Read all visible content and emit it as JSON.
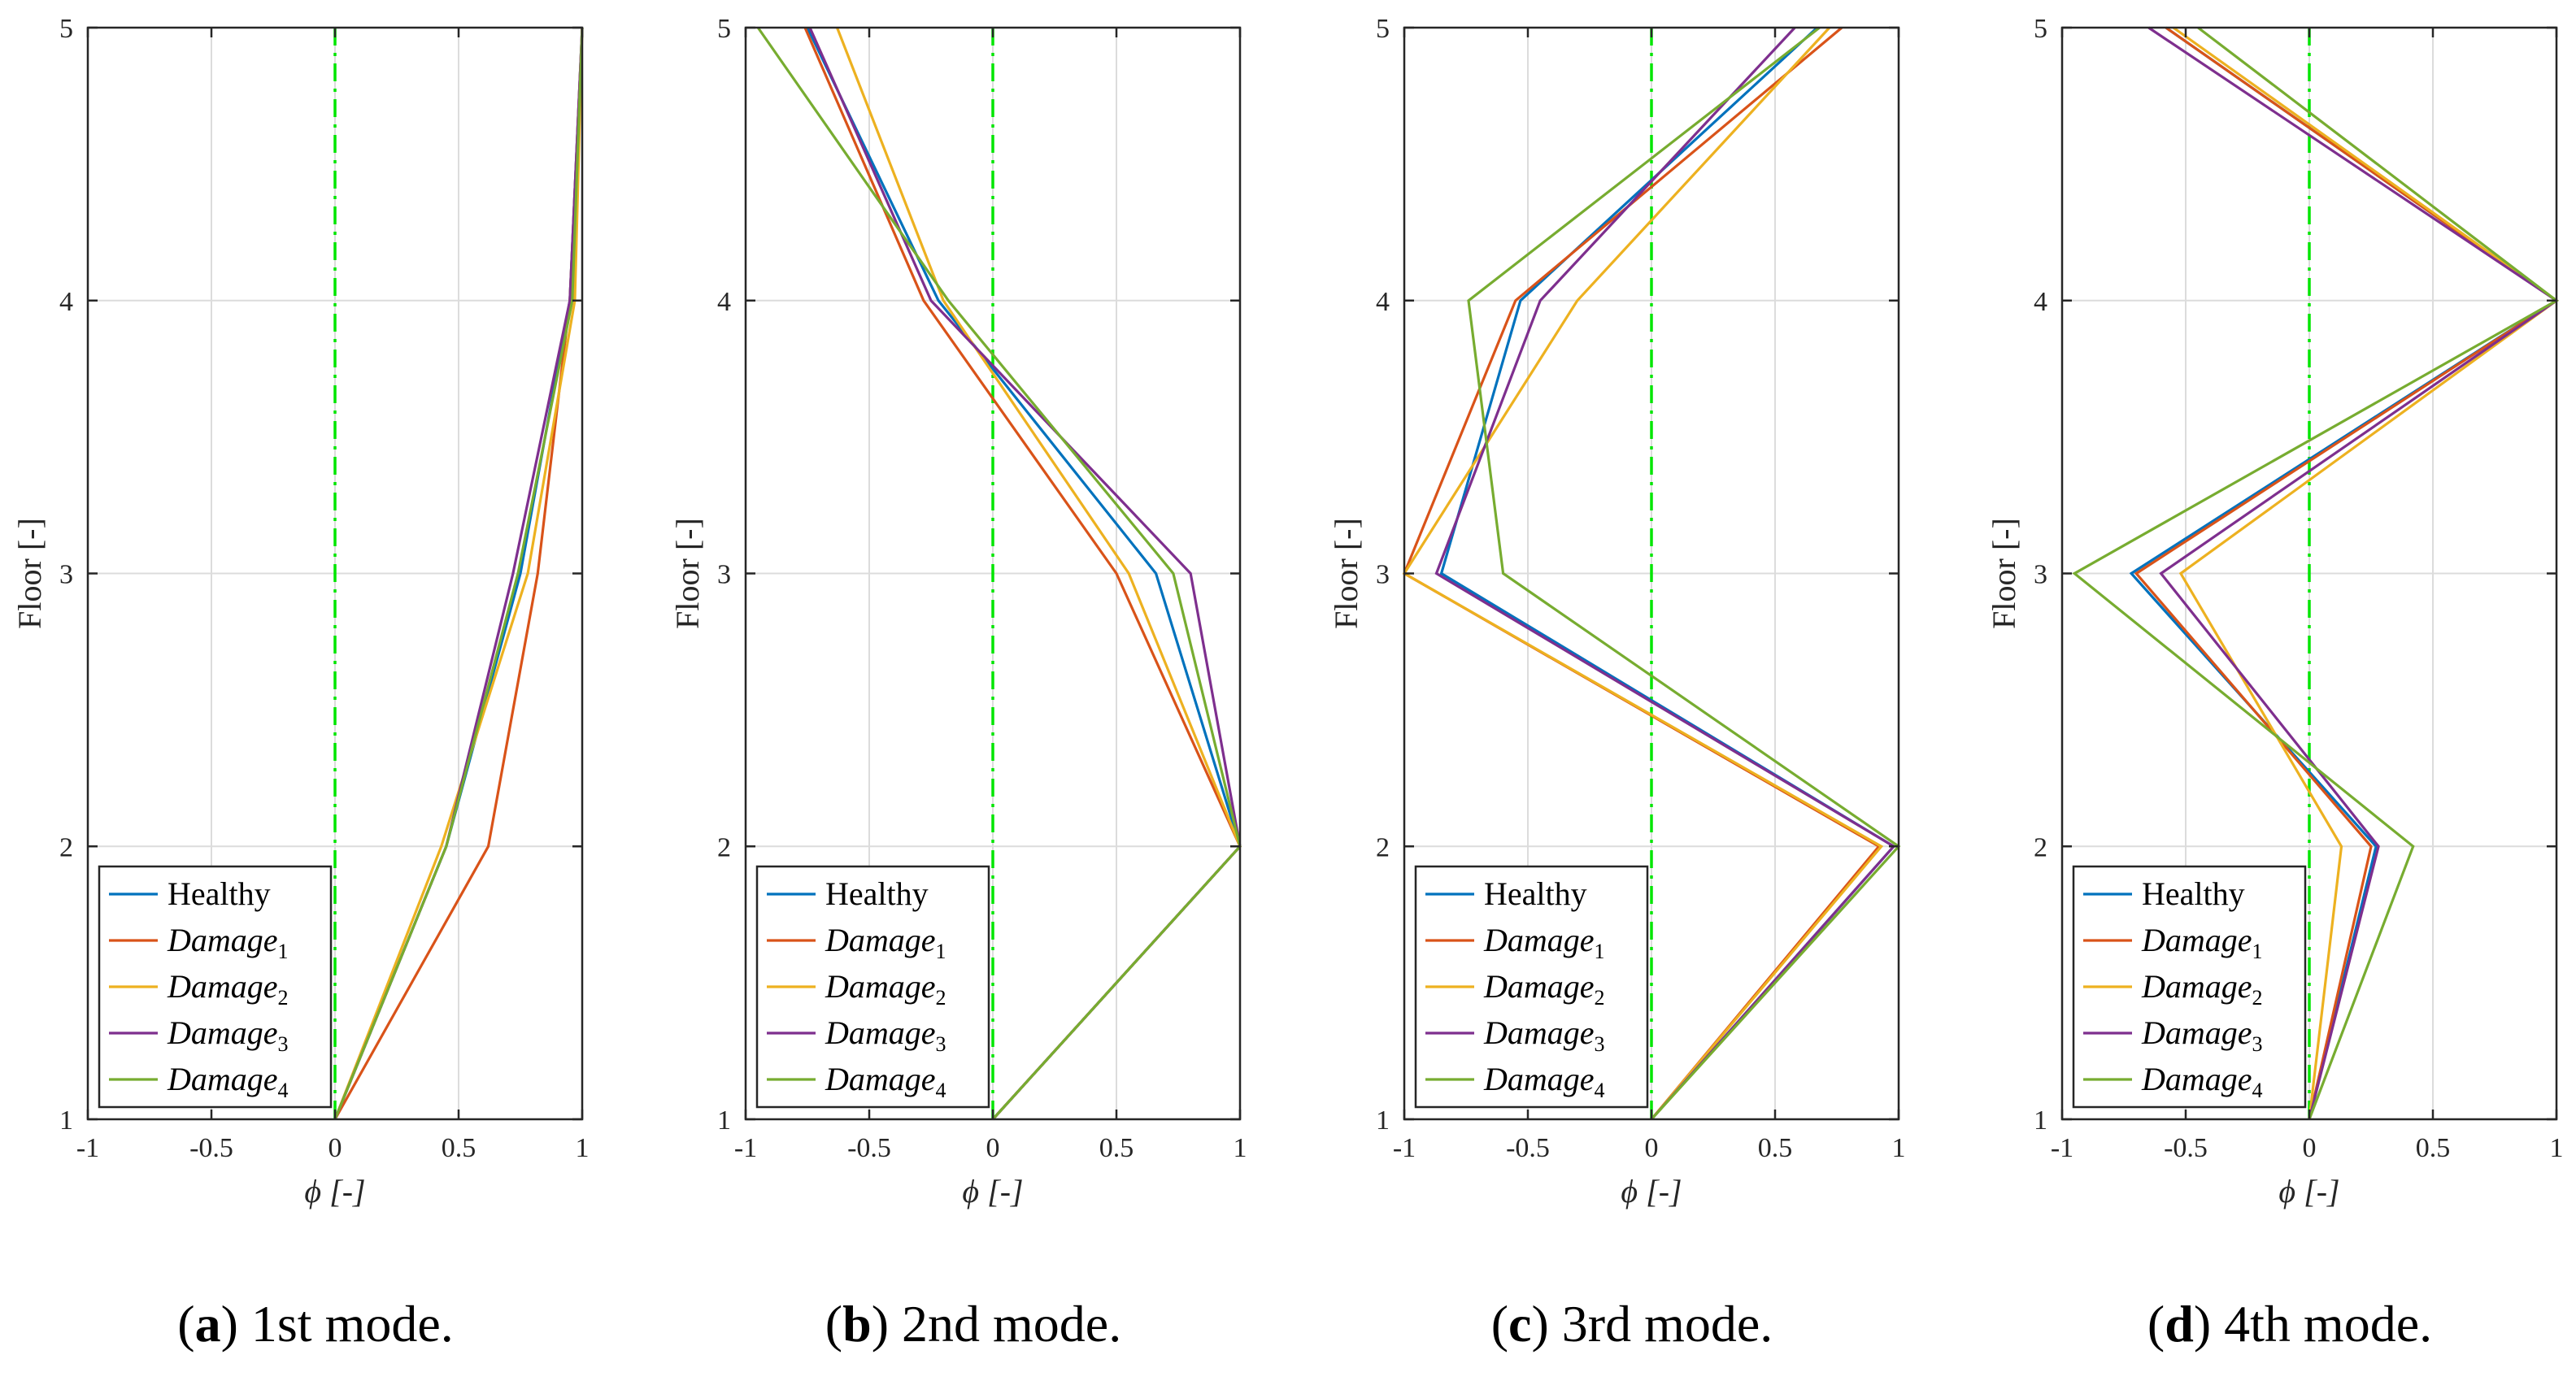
{
  "chart_data": [
    {
      "type": "line",
      "xlabel": "ϕ [-]",
      "ylabel": "Floor [-]",
      "xlim": [
        -1,
        1
      ],
      "ylim": [
        1,
        5
      ],
      "xticks": [
        -1,
        -0.5,
        0,
        0.5,
        1
      ],
      "yticks": [
        1,
        2,
        3,
        4,
        5
      ],
      "xtick_labels": [
        "-1",
        "-0.5",
        "0",
        "0.5",
        "1"
      ],
      "ytick_labels": [
        "1",
        "2",
        "3",
        "4",
        "5"
      ],
      "floors": [
        1,
        2,
        3,
        4,
        5
      ],
      "caption": {
        "letter": "a",
        "text": " 1st mode."
      },
      "zero_line": {
        "x": 0,
        "color": "#00e600"
      },
      "grid": true,
      "legend_position": "bottom-left",
      "series": [
        {
          "name": "Healthy",
          "display": {
            "base": "Healthy",
            "sub": ""
          },
          "color": "#0072bd",
          "phi": [
            0,
            0.45,
            0.75,
            0.95,
            1
          ]
        },
        {
          "name": "Damage1",
          "display": {
            "base": "Damage",
            "sub": "1"
          },
          "color": "#d95319",
          "phi": [
            0,
            0.62,
            0.82,
            0.95,
            1
          ]
        },
        {
          "name": "Damage2",
          "display": {
            "base": "Damage",
            "sub": "2"
          },
          "color": "#edb120",
          "phi": [
            0,
            0.43,
            0.78,
            0.97,
            1
          ]
        },
        {
          "name": "Damage3",
          "display": {
            "base": "Damage",
            "sub": "3"
          },
          "color": "#7e2f8e",
          "phi": [
            0,
            0.45,
            0.72,
            0.95,
            1
          ]
        },
        {
          "name": "Damage4",
          "display": {
            "base": "Damage",
            "sub": "4"
          },
          "color": "#77ac30",
          "phi": [
            0,
            0.45,
            0.74,
            0.96,
            1
          ]
        }
      ]
    },
    {
      "type": "line",
      "xlabel": "ϕ [-]",
      "ylabel": "Floor [-]",
      "xlim": [
        -1,
        1
      ],
      "ylim": [
        1,
        5
      ],
      "xticks": [
        -1,
        -0.5,
        0,
        0.5,
        1
      ],
      "yticks": [
        1,
        2,
        3,
        4,
        5
      ],
      "xtick_labels": [
        "-1",
        "-0.5",
        "0",
        "0.5",
        "1"
      ],
      "ytick_labels": [
        "1",
        "2",
        "3",
        "4",
        "5"
      ],
      "floors": [
        1,
        2,
        3,
        4,
        5
      ],
      "caption": {
        "letter": "b",
        "text": " 2nd mode."
      },
      "zero_line": {
        "x": 0,
        "color": "#00e600"
      },
      "grid": true,
      "legend_position": "bottom-left",
      "series": [
        {
          "name": "Healthy",
          "display": {
            "base": "Healthy",
            "sub": ""
          },
          "color": "#0072bd",
          "phi": [
            0,
            1,
            0.66,
            -0.22,
            -0.75
          ]
        },
        {
          "name": "Damage1",
          "display": {
            "base": "Damage",
            "sub": "1"
          },
          "color": "#d95319",
          "phi": [
            0,
            1,
            0.5,
            -0.28,
            -0.76
          ]
        },
        {
          "name": "Damage2",
          "display": {
            "base": "Damage",
            "sub": "2"
          },
          "color": "#edb120",
          "phi": [
            0,
            1,
            0.55,
            -0.2,
            -0.63
          ]
        },
        {
          "name": "Damage3",
          "display": {
            "base": "Damage",
            "sub": "3"
          },
          "color": "#7e2f8e",
          "phi": [
            0,
            1,
            0.8,
            -0.25,
            -0.74
          ]
        },
        {
          "name": "Damage4",
          "display": {
            "base": "Damage",
            "sub": "4"
          },
          "color": "#77ac30",
          "phi": [
            0,
            1,
            0.73,
            -0.18,
            -0.95
          ]
        }
      ]
    },
    {
      "type": "line",
      "xlabel": "ϕ [-]",
      "ylabel": "Floor [-]",
      "xlim": [
        -1,
        1
      ],
      "ylim": [
        1,
        5
      ],
      "xticks": [
        -1,
        -0.5,
        0,
        0.5,
        1
      ],
      "yticks": [
        1,
        2,
        3,
        4,
        5
      ],
      "xtick_labels": [
        "-1",
        "-0.5",
        "0",
        "0.5",
        "1"
      ],
      "ytick_labels": [
        "1",
        "2",
        "3",
        "4",
        "5"
      ],
      "floors": [
        1,
        2,
        3,
        4,
        5
      ],
      "caption": {
        "letter": "c",
        "text": " 3rd mode."
      },
      "zero_line": {
        "x": 0,
        "color": "#00e600"
      },
      "grid": true,
      "legend_position": "bottom-left",
      "series": [
        {
          "name": "Healthy",
          "display": {
            "base": "Healthy",
            "sub": ""
          },
          "color": "#0072bd",
          "phi": [
            0,
            0.98,
            -0.85,
            -0.53,
            0.67
          ]
        },
        {
          "name": "Damage1",
          "display": {
            "base": "Damage",
            "sub": "1"
          },
          "color": "#d95319",
          "phi": [
            0,
            0.92,
            -1,
            -0.55,
            0.77
          ]
        },
        {
          "name": "Damage2",
          "display": {
            "base": "Damage",
            "sub": "2"
          },
          "color": "#edb120",
          "phi": [
            0,
            0.93,
            -1,
            -0.3,
            0.72
          ]
        },
        {
          "name": "Damage3",
          "display": {
            "base": "Damage",
            "sub": "3"
          },
          "color": "#7e2f8e",
          "phi": [
            0,
            0.98,
            -0.87,
            -0.45,
            0.58
          ]
        },
        {
          "name": "Damage4",
          "display": {
            "base": "Damage",
            "sub": "4"
          },
          "color": "#77ac30",
          "phi": [
            0,
            1,
            -0.6,
            -0.74,
            0.68
          ]
        }
      ]
    },
    {
      "type": "line",
      "xlabel": "ϕ [-]",
      "ylabel": "Floor [-]",
      "xlim": [
        -1,
        1
      ],
      "ylim": [
        1,
        5
      ],
      "xticks": [
        -1,
        -0.5,
        0,
        0.5,
        1
      ],
      "yticks": [
        1,
        2,
        3,
        4,
        5
      ],
      "xtick_labels": [
        "-1",
        "-0.5",
        "0",
        "0.5",
        "1"
      ],
      "ytick_labels": [
        "1",
        "2",
        "3",
        "4",
        "5"
      ],
      "floors": [
        1,
        2,
        3,
        4,
        5
      ],
      "caption": {
        "letter": "d",
        "text": " 4th mode."
      },
      "zero_line": {
        "x": 0,
        "color": "#00e600"
      },
      "grid": true,
      "legend_position": "bottom-left",
      "series": [
        {
          "name": "Healthy",
          "display": {
            "base": "Healthy",
            "sub": ""
          },
          "color": "#0072bd",
          "phi": [
            0,
            0.27,
            -0.72,
            1,
            -0.58
          ]
        },
        {
          "name": "Damage1",
          "display": {
            "base": "Damage",
            "sub": "1"
          },
          "color": "#d95319",
          "phi": [
            0,
            0.25,
            -0.7,
            1,
            -0.58
          ]
        },
        {
          "name": "Damage2",
          "display": {
            "base": "Damage",
            "sub": "2"
          },
          "color": "#edb120",
          "phi": [
            0,
            0.13,
            -0.52,
            1,
            -0.55
          ]
        },
        {
          "name": "Damage3",
          "display": {
            "base": "Damage",
            "sub": "3"
          },
          "color": "#7e2f8e",
          "phi": [
            0,
            0.28,
            -0.6,
            1,
            -0.65
          ]
        },
        {
          "name": "Damage4",
          "display": {
            "base": "Damage",
            "sub": "4"
          },
          "color": "#77ac30",
          "phi": [
            0,
            0.42,
            -0.95,
            1,
            -0.45
          ]
        }
      ]
    }
  ]
}
